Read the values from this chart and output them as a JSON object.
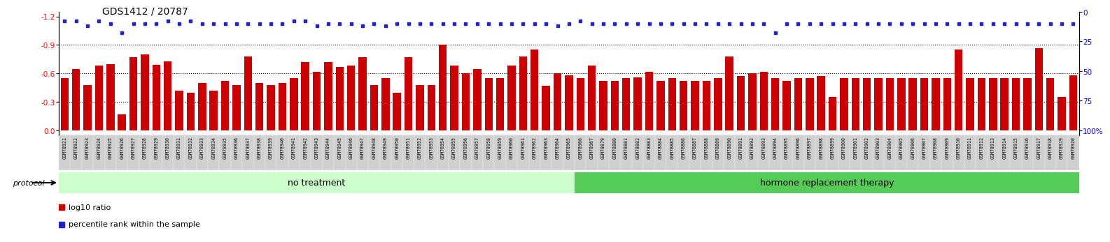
{
  "title": "GDS1412 / 20787",
  "samples": [
    "GSM78921",
    "GSM78922",
    "GSM78923",
    "GSM78924",
    "GSM78925",
    "GSM78926",
    "GSM78927",
    "GSM78928",
    "GSM78929",
    "GSM78930",
    "GSM78931",
    "GSM78932",
    "GSM78933",
    "GSM78934",
    "GSM78935",
    "GSM78936",
    "GSM78937",
    "GSM78938",
    "GSM78939",
    "GSM78940",
    "GSM78941",
    "GSM78942",
    "GSM78943",
    "GSM78944",
    "GSM78945",
    "GSM78946",
    "GSM78947",
    "GSM78948",
    "GSM78949",
    "GSM78950",
    "GSM78951",
    "GSM78952",
    "GSM78953",
    "GSM78954",
    "GSM78955",
    "GSM78956",
    "GSM78957",
    "GSM78958",
    "GSM78959",
    "GSM78960",
    "GSM78961",
    "GSM78962",
    "GSM78963",
    "GSM78964",
    "GSM78965",
    "GSM78966",
    "GSM78967",
    "GSM78879",
    "GSM78880",
    "GSM78881",
    "GSM78882",
    "GSM78883",
    "GSM78884",
    "GSM78885",
    "GSM78886",
    "GSM78887",
    "GSM78888",
    "GSM78889",
    "GSM78890",
    "GSM78891",
    "GSM78892",
    "GSM78893",
    "GSM78894",
    "GSM78895",
    "GSM78896",
    "GSM78897",
    "GSM78898",
    "GSM78899",
    "GSM78900",
    "GSM78901",
    "GSM78902",
    "GSM78903",
    "GSM78904",
    "GSM78905",
    "GSM78906",
    "GSM78907",
    "GSM78908",
    "GSM78909",
    "GSM78910",
    "GSM78911",
    "GSM78912",
    "GSM78913",
    "GSM78914",
    "GSM78915",
    "GSM78916",
    "GSM78917",
    "GSM78918",
    "GSM78919",
    "GSM78920"
  ],
  "log10_ratio": [
    -0.55,
    -0.65,
    -0.48,
    -0.68,
    -0.7,
    -0.17,
    -0.77,
    -0.8,
    -0.69,
    -0.73,
    -0.42,
    -0.4,
    -0.5,
    -0.42,
    -0.52,
    -0.48,
    -0.78,
    -0.5,
    -0.48,
    -0.5,
    -0.55,
    -0.72,
    -0.62,
    -0.72,
    -0.67,
    -0.68,
    -0.77,
    -0.48,
    -0.55,
    -0.4,
    -0.77,
    -0.48,
    -0.48,
    -0.9,
    -0.68,
    -0.6,
    -0.65,
    -0.55,
    -0.55,
    -0.68,
    -0.78,
    -0.85,
    -0.47,
    -0.6,
    -0.58,
    -0.55,
    -0.68,
    -0.52,
    -0.52,
    -0.55,
    -0.56,
    -0.62,
    -0.52,
    -0.55,
    -0.52,
    -0.52,
    -0.52,
    -0.55,
    -0.78,
    -0.57,
    -0.6,
    -0.62,
    -0.55,
    -0.52,
    -0.55,
    -0.55,
    -0.57,
    -0.35,
    -0.55,
    -0.55,
    -0.55,
    -0.55,
    -0.55,
    -0.55,
    -0.55,
    -0.55,
    -0.55,
    -0.55,
    -0.85,
    -0.55,
    -0.55,
    -0.55,
    -0.55,
    -0.55,
    -0.55,
    -0.87,
    -0.55,
    -0.35,
    -0.58
  ],
  "percentile_rank": [
    8,
    8,
    12,
    8,
    10,
    18,
    10,
    10,
    10,
    8,
    10,
    8,
    10,
    10,
    10,
    10,
    10,
    10,
    10,
    10,
    8,
    8,
    12,
    10,
    10,
    10,
    12,
    10,
    12,
    10,
    10,
    10,
    10,
    10,
    10,
    10,
    10,
    10,
    10,
    10,
    10,
    10,
    10,
    12,
    10,
    8,
    10,
    10,
    10,
    10,
    10,
    10,
    10,
    10,
    10,
    10,
    10,
    10,
    10,
    10,
    10,
    10,
    18,
    10,
    10,
    10,
    10,
    10,
    10,
    10,
    10,
    10,
    10,
    10,
    10,
    10,
    10,
    10,
    10,
    10,
    10,
    10,
    10,
    10,
    10,
    10,
    10,
    10,
    10
  ],
  "no_treatment_count": 45,
  "bar_color": "#cc0000",
  "dot_color": "#2222cc",
  "ylim_left": [
    0.0,
    -1.25
  ],
  "yticks_left": [
    0.0,
    -0.3,
    -0.6,
    -0.9,
    -1.2
  ],
  "yticks_right": [
    100,
    75,
    50,
    25,
    0
  ],
  "grid_values": [
    -0.3,
    -0.6,
    -0.9
  ],
  "bg_no_treatment": "#ccffcc",
  "bg_hrt": "#55cc55",
  "protocol_label": "protocol",
  "no_treatment_label": "no treatment",
  "hrt_label": "hormone replacement therapy",
  "legend_ratio": "log10 ratio",
  "legend_percentile": "percentile rank within the sample",
  "xtick_bg": "#d0d0d0"
}
